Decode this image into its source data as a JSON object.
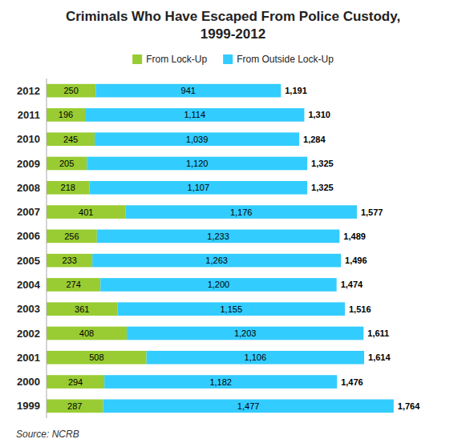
{
  "chart_data": {
    "type": "bar",
    "orientation": "horizontal",
    "stacked": true,
    "title": "Criminals Who Have Escaped From Police Custody,",
    "subtitle": "1999-2012",
    "annotations": [
      "Source: NCRB"
    ],
    "categories": [
      "2012",
      "2011",
      "2010",
      "2009",
      "2008",
      "2007",
      "2006",
      "2005",
      "2004",
      "2003",
      "2002",
      "2001",
      "2000",
      "1999"
    ],
    "series": [
      {
        "name": "From Lock-Up",
        "color": "#99cc33",
        "values": [
          250,
          196,
          245,
          205,
          218,
          401,
          256,
          233,
          274,
          361,
          408,
          508,
          294,
          287
        ]
      },
      {
        "name": "From Outside Lock-Up",
        "color": "#33ccff",
        "values": [
          941,
          1114,
          1039,
          1120,
          1107,
          1176,
          1233,
          1263,
          1200,
          1155,
          1203,
          1106,
          1182,
          1477
        ],
        "value_labels": [
          "941",
          "1,114",
          "1,039",
          "1,120",
          "1,107",
          "1,176",
          "1,233",
          "1,263",
          "1,200",
          "1,155",
          "1,203",
          "1,106",
          "1,182",
          "1,477"
        ]
      }
    ],
    "totals": {
      "values": [
        1191,
        1310,
        1284,
        1325,
        1325,
        1577,
        1489,
        1496,
        1474,
        1516,
        1611,
        1614,
        1476,
        1764
      ],
      "value_labels": [
        "1,191",
        "1,310",
        "1,284",
        "1,325",
        "1,325",
        "1,577",
        "1,489",
        "1,496",
        "1,474",
        "1,516",
        "1,611",
        "1,614",
        "1,476",
        "1,764"
      ]
    },
    "xlim": [
      0,
      2050
    ],
    "data_labels": true,
    "tick_labels": "y",
    "grid": false,
    "legend": "top"
  }
}
